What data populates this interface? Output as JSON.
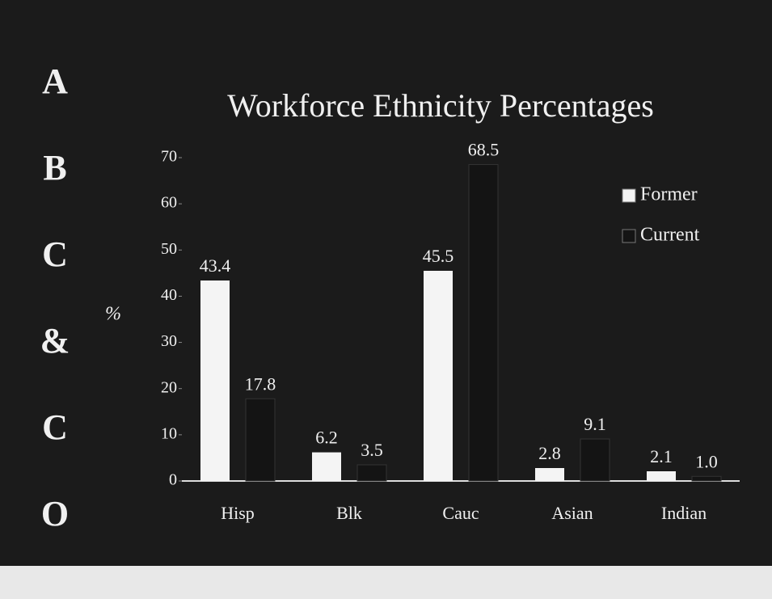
{
  "side_letters": [
    "A",
    "B",
    "C",
    "&",
    "C",
    "O"
  ],
  "chart_data": {
    "type": "bar",
    "title": "Workforce Ethnicity Percentages",
    "ylabel": "%",
    "categories": [
      "Hisp",
      "Blk",
      "Cauc",
      "Asian",
      "Indian"
    ],
    "series": [
      {
        "name": "Former",
        "color": "#f4f4f4",
        "values": [
          43.4,
          6.2,
          45.5,
          2.8,
          2.1
        ]
      },
      {
        "name": "Current",
        "color": "#141414",
        "values": [
          17.8,
          3.5,
          68.5,
          9.1,
          1.0
        ],
        "value_labels": [
          "17.8",
          "3.5",
          "68.5",
          "9.1",
          "1.0"
        ]
      }
    ],
    "ylim": [
      0,
      70
    ],
    "yticks": [
      0,
      10,
      20,
      30,
      40,
      50,
      60,
      70
    ],
    "legend": "upper right"
  }
}
